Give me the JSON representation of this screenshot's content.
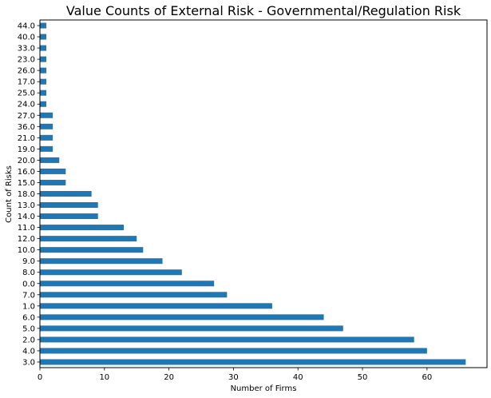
{
  "chart_data": {
    "type": "bar",
    "orientation": "horizontal",
    "title": "Value Counts of External Risk - Governmental/Regulation Risk",
    "xlabel": "Number of Firms",
    "ylabel": "Count of Risks",
    "categories": [
      "3.0",
      "4.0",
      "2.0",
      "5.0",
      "6.0",
      "1.0",
      "7.0",
      "0.0",
      "8.0",
      "9.0",
      "10.0",
      "12.0",
      "11.0",
      "14.0",
      "13.0",
      "18.0",
      "15.0",
      "16.0",
      "20.0",
      "19.0",
      "21.0",
      "36.0",
      "27.0",
      "24.0",
      "25.0",
      "17.0",
      "26.0",
      "23.0",
      "33.0",
      "40.0",
      "44.0"
    ],
    "values": [
      66,
      60,
      58,
      47,
      44,
      36,
      29,
      27,
      22,
      19,
      16,
      15,
      13,
      9,
      9,
      8,
      4,
      4,
      3,
      2,
      2,
      2,
      2,
      1,
      1,
      1,
      1,
      1,
      1,
      1,
      1
    ],
    "xticks": [
      0,
      10,
      20,
      30,
      40,
      50,
      60
    ],
    "xlim": [
      0,
      69.3
    ],
    "bar_color": "#1f77b4",
    "grid": false,
    "legend": "none"
  }
}
